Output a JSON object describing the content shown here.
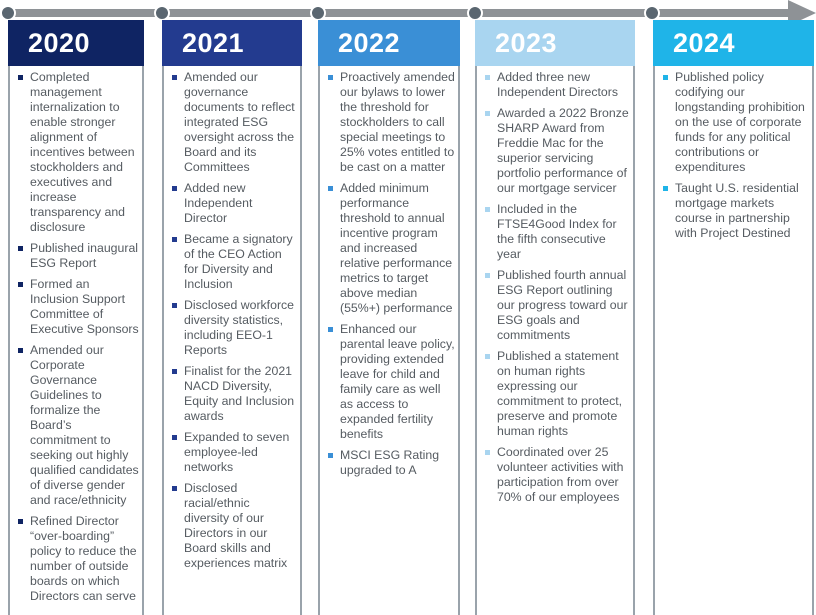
{
  "colors": {
    "track": "#8e9296",
    "node": "#5a6670",
    "text": "#555b61",
    "divider": "#9aa3ab"
  },
  "columns": [
    {
      "year": "2020",
      "color": "#0f2463",
      "items": [
        "Completed management internalization to enable stronger alignment of incentives between stockholders and executives and increase transparency and disclosure",
        "Published inaugural ESG Report",
        "Formed an Inclusion Support Committee of Executive Sponsors",
        "Amended our Corporate Governance Guidelines to formalize the Board’s commitment to seeking out highly qualified candidates of diverse gender and race/ethnicity",
        "Refined Director “over-boarding” policy to reduce the number of outside boards on which Directors can serve"
      ]
    },
    {
      "year": "2021",
      "color": "#233b8f",
      "items": [
        "Amended our governance documents to reflect integrated ESG oversight across the Board and its Committees",
        "Added new Independent Director",
        "Became a signatory of the CEO Action for Diversity and Inclusion",
        "Disclosed workforce diversity statistics, including EEO-1 Reports",
        "Finalist for the 2021 NACD Diversity, Equity and Inclusion awards",
        "Expanded to seven employee-led networks",
        "Disclosed racial/ethnic diversity of our Directors in our Board skills and experiences matrix"
      ]
    },
    {
      "year": "2022",
      "color": "#3a8fd6",
      "items": [
        "Proactively amended our bylaws to lower the threshold for stockholders to call special meetings to 25% votes entitled to be cast on a matter",
        "Added minimum performance threshold to annual incentive program and increased relative performance metrics to target above median (55%+) performance",
        "Enhanced our parental leave policy, providing extended leave for child and family care as well as access to expanded fertility benefits",
        "MSCI ESG Rating upgraded to A"
      ]
    },
    {
      "year": "2023",
      "color": "#a9d5f0",
      "items": [
        "Added three new Independent Directors",
        "Awarded a 2022 Bronze SHARP Award from Freddie Mac for the superior servicing portfolio performance of our mortgage servicer",
        "Included in the FTSE4Good Index for the fifth consecutive year",
        "Published fourth annual ESG Report outlining our progress toward our ESG goals and commitments",
        "Published a statement on human rights expressing our commitment to protect, preserve and promote human rights",
        "Coordinated over 25 volunteer activities with participation from over 70% of our employees"
      ]
    },
    {
      "year": "2024",
      "color": "#1fb4e8",
      "items": [
        "Published policy codifying our longstanding prohibition on the use of corporate funds for any political contributions or expenditures",
        "Taught U.S. residential mortgage markets course in partnership with Project Destined"
      ]
    }
  ]
}
